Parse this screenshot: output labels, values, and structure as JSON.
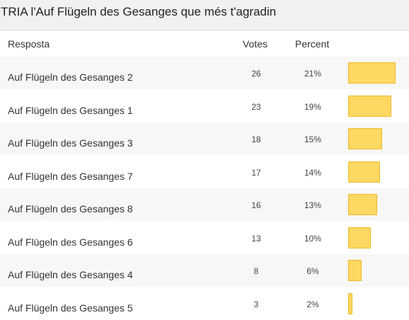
{
  "title": "TRIA l'Auf Flügeln des Gesanges que més t'agradin",
  "header": {
    "resposta": "Resposta",
    "votes": "Votes",
    "percent": "Percent"
  },
  "colors": {
    "bar_fill": "#fdd862",
    "bar_border": "#e9b92c"
  },
  "rows": [
    {
      "label": "Auf Flügeln des Gesanges 2",
      "votes": "26",
      "percent": "21%",
      "share": 0.21
    },
    {
      "label": "Auf Flügeln des Gesanges 1",
      "votes": "23",
      "percent": "19%",
      "share": 0.19
    },
    {
      "label": "Auf Flügeln des Gesanges 3",
      "votes": "18",
      "percent": "15%",
      "share": 0.15
    },
    {
      "label": "Auf Flügeln des Gesanges 7",
      "votes": "17",
      "percent": "14%",
      "share": 0.14
    },
    {
      "label": "Auf Flügeln des Gesanges 8",
      "votes": "16",
      "percent": "13%",
      "share": 0.13
    },
    {
      "label": "Auf Flügeln des Gesanges 6",
      "votes": "13",
      "percent": "10%",
      "share": 0.1
    },
    {
      "label": "Auf Flügeln des Gesanges 4",
      "votes": "8",
      "percent": "6%",
      "share": 0.06
    },
    {
      "label": "Auf Flügeln des Gesanges 5",
      "votes": "3",
      "percent": "2%",
      "share": 0.02
    }
  ]
}
